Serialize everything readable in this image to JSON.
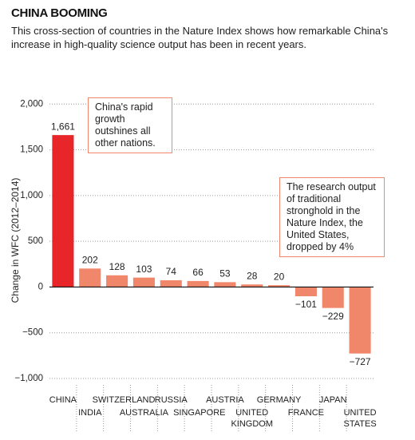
{
  "chart_data": {
    "type": "bar",
    "title": "CHINA BOOMING",
    "subtitle": "This cross-section of countries in the Nature Index shows how remarkable China's increase in high-quality science output has been in recent years.",
    "y_label": "Change in WFC (2012–2014)",
    "categories": [
      "CHINA",
      "INDIA",
      "SWITZERLAND",
      "AUSTRALIA",
      "RUSSIA",
      "SINGAPORE",
      "AUSTRIA",
      "UNITED KINGDOM",
      "GERMANY",
      "FRANCE",
      "JAPAN",
      "UNITED STATES"
    ],
    "values": [
      1661,
      202,
      128,
      103,
      74,
      66,
      53,
      28,
      20,
      -101,
      -229,
      -727
    ],
    "value_labels": [
      "1,661",
      "202",
      "128",
      "103",
      "74",
      "66",
      "53",
      "28",
      "20",
      "−101",
      "−229",
      "−727"
    ],
    "colors": [
      "#e8262a",
      "#f0866a",
      "#f0866a",
      "#f0866a",
      "#f0866a",
      "#f0866a",
      "#f0866a",
      "#f0866a",
      "#f0866a",
      "#f0866a",
      "#f0866a",
      "#f0866a"
    ],
    "ylim": [
      -1070,
      2090
    ],
    "yticks": [
      {
        "value": -1000,
        "label": "−1,000"
      },
      {
        "value": -500,
        "label": "−500"
      },
      0,
      500,
      {
        "value": 1000,
        "label": "1,000"
      },
      {
        "value": 1500,
        "label": "1,500"
      },
      {
        "value": 2000,
        "label": "2,000"
      }
    ],
    "grid": true,
    "annotations": [
      "China's rapid growth outshines all other nations.",
      "The research output of traditional stronghold in the Nature Index, the United States, dropped by 4%"
    ]
  }
}
